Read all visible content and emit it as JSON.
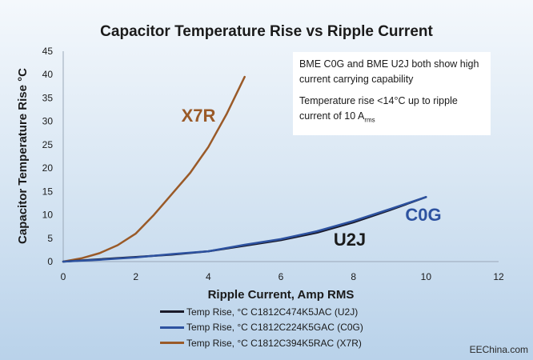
{
  "chart_data": {
    "type": "line",
    "title": "Capacitor Temperature Rise vs Ripple Current",
    "xlabel": "Ripple Current, Amp RMS",
    "ylabel": "Capacitor Temperature Rise °C",
    "xlim": [
      0,
      12
    ],
    "ylim": [
      0,
      45
    ],
    "x_ticks": [
      "0",
      "2",
      "4",
      "6",
      "8",
      "10",
      "12"
    ],
    "y_ticks": [
      "0",
      "5",
      "10",
      "15",
      "20",
      "25",
      "30",
      "35",
      "40",
      "45"
    ],
    "grid": false,
    "legend_position": "bottom",
    "series": [
      {
        "name": "Temp Rise, °C C1812C474K5JAC (U2J)",
        "label": "U2J",
        "color": "#1a1a2a",
        "label_color": "#1a1a1a",
        "x": [
          0,
          1,
          2,
          3,
          4,
          5,
          6,
          7,
          8,
          9,
          10
        ],
        "y": [
          0,
          0.5,
          1.0,
          1.5,
          2.2,
          3.4,
          4.6,
          6.2,
          8.4,
          11.0,
          13.8
        ]
      },
      {
        "name": "Temp Rise, °C C1812C224K5GAC (C0G)",
        "label": "C0G",
        "color": "#2d52a0",
        "label_color": "#2d52a0",
        "x": [
          0,
          1,
          2,
          3,
          4,
          5,
          6,
          7,
          8,
          9,
          10
        ],
        "y": [
          0,
          0.4,
          0.9,
          1.6,
          2.2,
          3.6,
          4.8,
          6.5,
          8.7,
          11.2,
          13.8
        ]
      },
      {
        "name": "Temp Rise, °C C1812C394K5RAC (X7R)",
        "label": "X7R",
        "color": "#9a5a28",
        "label_color": "#9a5a28",
        "x": [
          0,
          0.5,
          1,
          1.5,
          2,
          2.5,
          3,
          3.5,
          4,
          4.5,
          5
        ],
        "y": [
          0,
          0.7,
          1.8,
          3.5,
          6.0,
          10.0,
          14.5,
          19.0,
          24.5,
          31.5,
          39.5
        ]
      }
    ],
    "annotations": [
      "BME C0G and BME U2J both show high current carrying capability",
      "Temperature rise <14°C up to ripple current of 10 A",
      "rms"
    ]
  },
  "watermark": "EEChina.com"
}
